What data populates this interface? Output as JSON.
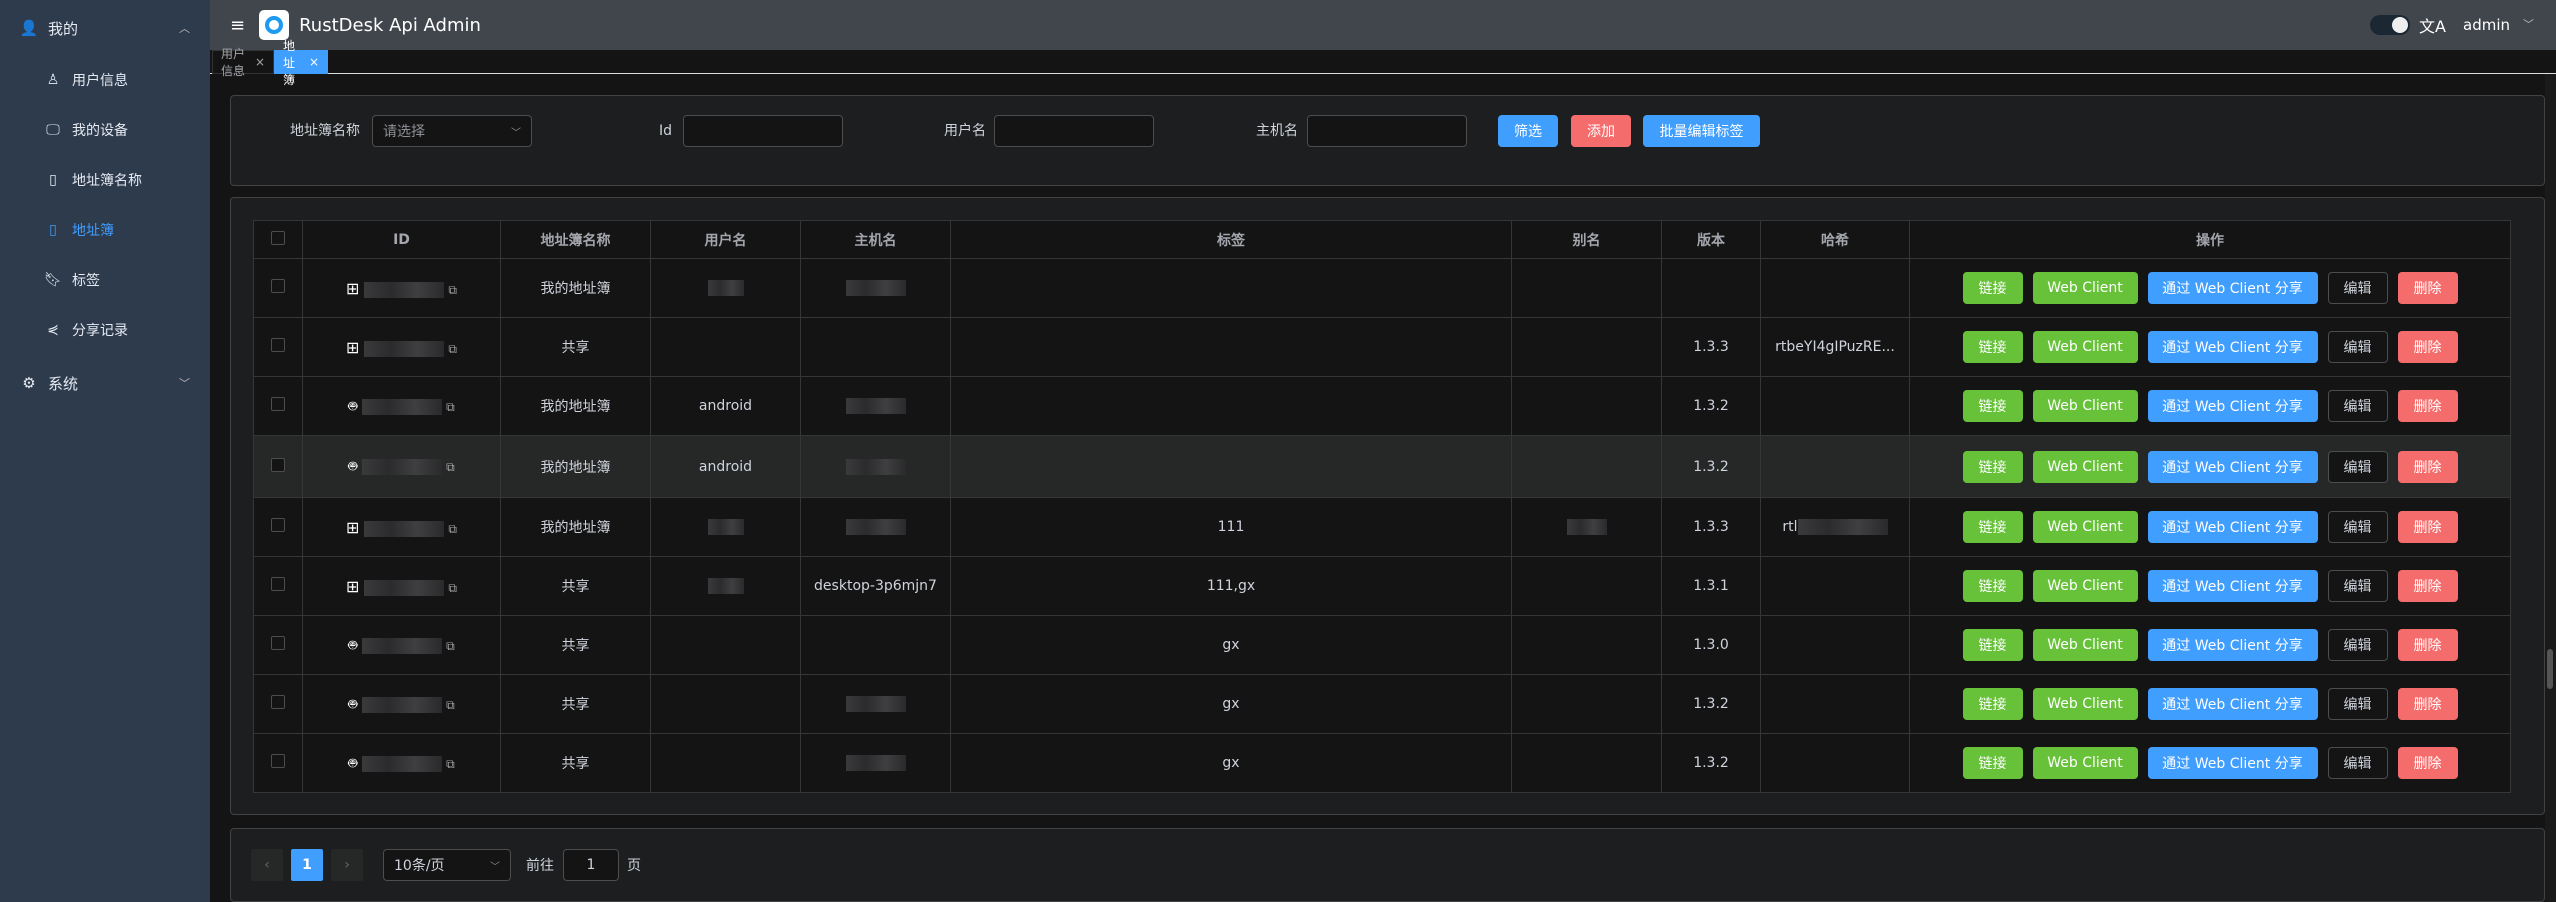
{
  "app": {
    "title": "RustDesk Api Admin",
    "user": "admin"
  },
  "sidebar": {
    "groups": [
      {
        "label": "我的",
        "icon": "user-icon",
        "expanded": true,
        "items": [
          {
            "label": "用户信息",
            "icon": "user-outline-icon"
          },
          {
            "label": "我的设备",
            "icon": "monitor-icon"
          },
          {
            "label": "地址簿名称",
            "icon": "notebook-icon"
          },
          {
            "label": "地址簿",
            "icon": "address-book-icon",
            "active": true
          },
          {
            "label": "标签",
            "icon": "bookmark-icon"
          },
          {
            "label": "分享记录",
            "icon": "share-icon"
          }
        ]
      },
      {
        "label": "系统",
        "icon": "gear-icon",
        "expanded": false
      }
    ]
  },
  "tabs": [
    {
      "label": "用户信息",
      "close": "×"
    },
    {
      "label": "地址簿",
      "close": "×",
      "active": true
    }
  ],
  "filter": {
    "collection_label": "地址簿名称",
    "collection_placeholder": "请选择",
    "id_label": "Id",
    "username_label": "用户名",
    "hostname_label": "主机名",
    "filter_btn": "筛选",
    "add_btn": "添加",
    "batch_btn": "批量编辑标签"
  },
  "table": {
    "headers": [
      "ID",
      "地址簿名称",
      "用户名",
      "主机名",
      "标签",
      "别名",
      "版本",
      "哈希",
      "操作"
    ],
    "actions": {
      "connect": "链接",
      "web_client": "Web Client",
      "share": "通过 Web Client 分享",
      "edit": "编辑",
      "delete": "删除"
    },
    "rows": [
      {
        "os": "windows",
        "collection": "我的地址簿",
        "username": "",
        "hostname": "",
        "tags": "",
        "alias": "",
        "version": "",
        "hash": ""
      },
      {
        "os": "windows",
        "collection": "共享",
        "username": "",
        "hostname": "",
        "tags": "",
        "alias": "",
        "version": "1.3.3",
        "hash": "rtbeYI4gIPuzRE..."
      },
      {
        "os": "android",
        "collection": "我的地址簿",
        "username": "android",
        "hostname": "",
        "tags": "",
        "alias": "",
        "version": "1.3.2",
        "hash": ""
      },
      {
        "os": "android",
        "collection": "我的地址簿",
        "username": "android",
        "hostname": "",
        "tags": "",
        "alias": "",
        "version": "1.3.2",
        "hash": ""
      },
      {
        "os": "windows",
        "collection": "我的地址簿",
        "username": "",
        "hostname": "",
        "tags": "111",
        "alias": "",
        "version": "1.3.3",
        "hash": ""
      },
      {
        "os": "windows",
        "collection": "共享",
        "username": "",
        "hostname": "desktop-3p6mjn7",
        "tags": "111,gx",
        "alias": "",
        "version": "1.3.1",
        "hash": ""
      },
      {
        "os": "android",
        "collection": "共享",
        "username": "",
        "hostname": "",
        "tags": "gx",
        "alias": "",
        "version": "1.3.0",
        "hash": ""
      },
      {
        "os": "android",
        "collection": "共享",
        "username": "",
        "hostname": "",
        "tags": "gx",
        "alias": "",
        "version": "1.3.2",
        "hash": ""
      },
      {
        "os": "android",
        "collection": "共享",
        "username": "",
        "hostname": "",
        "tags": "gx",
        "alias": "",
        "version": "1.3.2",
        "hash": ""
      }
    ]
  },
  "pagination": {
    "current": "1",
    "page_size": "10条/页",
    "goto_label": "前往",
    "goto_value": "1",
    "page_suffix": "页",
    "prev": "‹",
    "next": "›"
  },
  "colors": {
    "primary": "#409eff",
    "success": "#67c23a",
    "danger": "#f56c6c"
  }
}
